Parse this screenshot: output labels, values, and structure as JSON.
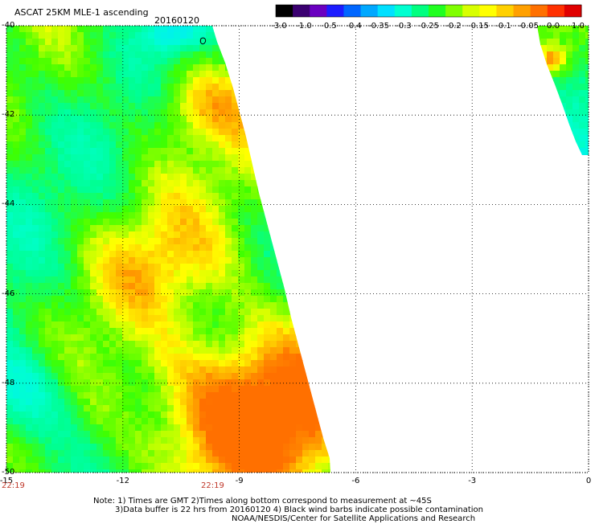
{
  "header": {
    "title": "ASCAT 25KM MLE-1 ascending",
    "date": "20160120"
  },
  "colorbar": {
    "labels": [
      "-3.0",
      "-1.0",
      "-0.5",
      "-0.4",
      "-0.35",
      "-0.3",
      "-0.25",
      "-0.2",
      "-0.15",
      "-0.1",
      "-0.05",
      "0.0",
      "1.0"
    ],
    "colors": [
      "#000000",
      "#3a0070",
      "#6a00c0",
      "#1c1cff",
      "#0066ff",
      "#00a8ff",
      "#00e0ff",
      "#00ffd0",
      "#00ff80",
      "#20ff20",
      "#80ff00",
      "#d8ff00",
      "#ffff00",
      "#ffd000",
      "#ffa000",
      "#ff7000",
      "#ff3000",
      "#e00000"
    ]
  },
  "map": {
    "lat_labels": [
      "-40",
      "-42",
      "-44",
      "-46",
      "-48",
      "-50"
    ],
    "lon_labels": [
      "-15",
      "-12",
      "-9",
      "-6",
      "-3",
      "0"
    ],
    "time_labels": [
      "22:19",
      "22:19"
    ],
    "grid": "dotted",
    "extent": {
      "lon": [
        -15,
        0
      ],
      "lat": [
        -50,
        -40
      ]
    }
  },
  "notes": {
    "line1": "Note: 1) Times are GMT 2)Times along bottom correspond to measurement at ~45S",
    "line2": "3)Data buffer is 22 hrs from 20160120 4) Black wind barbs indicate possible contamination",
    "line3": "NOAA/NESDIS/Center for Satellite Applications and Research"
  }
}
